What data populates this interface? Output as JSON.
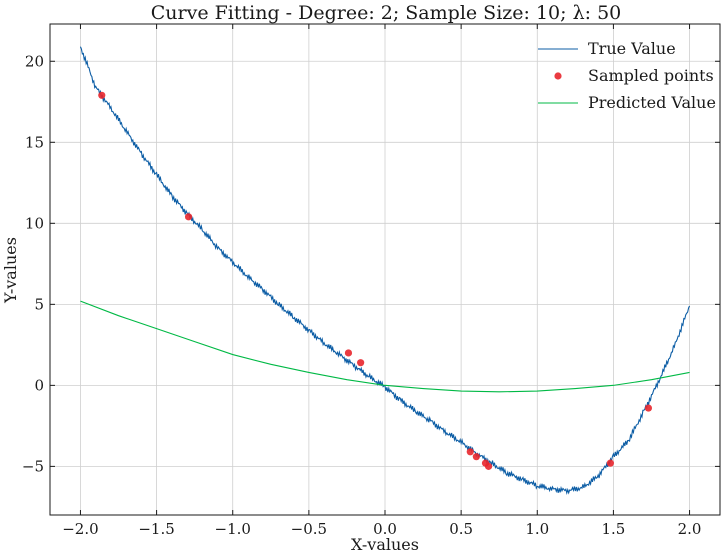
{
  "chart_data": {
    "type": "line",
    "title": "Curve Fitting - Degree: 2; Sample Size: 10; λ: 50",
    "xlabel": "X-values",
    "ylabel": "Y-values",
    "xlim": [
      -2.2,
      2.2
    ],
    "ylim": [
      -8.0,
      22.3
    ],
    "xticks": [
      -2.0,
      -1.5,
      -1.0,
      -0.5,
      0.0,
      0.5,
      1.0,
      1.5,
      2.0
    ],
    "xtick_labels": [
      "−2.0",
      "−1.5",
      "−1.0",
      "−0.5",
      "0.0",
      "0.5",
      "1.0",
      "1.5",
      "2.0"
    ],
    "yticks": [
      -5,
      0,
      5,
      10,
      15,
      20
    ],
    "ytick_labels": [
      "−5",
      "0",
      "5",
      "10",
      "15",
      "20"
    ],
    "grid": true,
    "legend_position": "top-right",
    "colors": {
      "true_value": "#0c5da5",
      "sampled_points": "#e8262c",
      "predicted_value": "#00b945",
      "grid": "#cfcfcf"
    },
    "series": [
      {
        "name": "True Value",
        "kind": "line",
        "x": [
          -2.0,
          -1.9,
          -1.8,
          -1.7,
          -1.6,
          -1.5,
          -1.4,
          -1.3,
          -1.2,
          -1.1,
          -1.0,
          -0.9,
          -0.8,
          -0.7,
          -0.6,
          -0.5,
          -0.4,
          -0.3,
          -0.2,
          -0.1,
          0.0,
          0.1,
          0.2,
          0.3,
          0.4,
          0.5,
          0.6,
          0.7,
          0.8,
          0.9,
          1.0,
          1.1,
          1.2,
          1.3,
          1.4,
          1.5,
          1.6,
          1.7,
          1.8,
          1.9,
          2.0
        ],
        "y": [
          20.9,
          18.4,
          17.1,
          15.7,
          14.3,
          13.0,
          11.7,
          10.6,
          9.6,
          8.5,
          7.6,
          6.7,
          5.9,
          5.0,
          4.2,
          3.4,
          2.6,
          1.9,
          1.2,
          0.5,
          -0.1,
          -0.9,
          -1.6,
          -2.2,
          -2.9,
          -3.5,
          -4.2,
          -4.8,
          -5.4,
          -5.8,
          -6.2,
          -6.4,
          -6.5,
          -6.3,
          -5.6,
          -4.4,
          -3.4,
          -1.6,
          0.3,
          2.4,
          4.9
        ]
      },
      {
        "name": "Sampled points",
        "kind": "scatter",
        "x": [
          -1.86,
          -1.29,
          -0.24,
          -0.16,
          0.56,
          0.6,
          0.66,
          0.68,
          1.48,
          1.73
        ],
        "y": [
          17.9,
          10.4,
          2.0,
          1.4,
          -4.1,
          -4.4,
          -4.8,
          -5.0,
          -4.8,
          -1.4
        ]
      },
      {
        "name": "Predicted Value",
        "kind": "line",
        "x": [
          -2.0,
          -1.75,
          -1.5,
          -1.25,
          -1.0,
          -0.75,
          -0.5,
          -0.25,
          0.0,
          0.25,
          0.5,
          0.75,
          1.0,
          1.25,
          1.5,
          1.75,
          2.0
        ],
        "y": [
          5.2,
          4.3,
          3.5,
          2.7,
          1.9,
          1.3,
          0.8,
          0.35,
          0.0,
          -0.2,
          -0.35,
          -0.4,
          -0.35,
          -0.2,
          0.0,
          0.35,
          0.8
        ]
      }
    ]
  }
}
